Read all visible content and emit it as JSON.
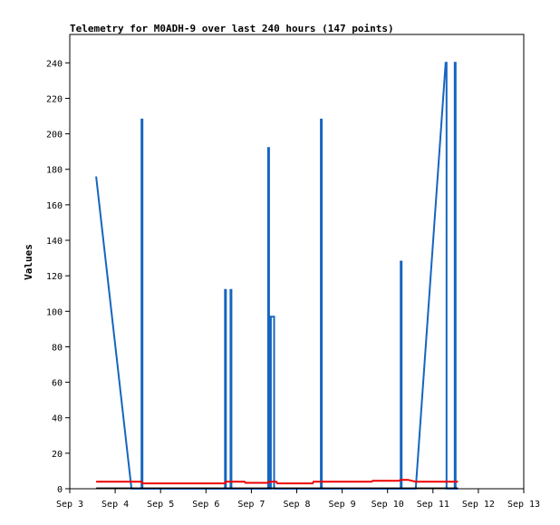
{
  "chart_data": {
    "type": "line",
    "title": "Telemetry for M0ADH-9 over last 240 hours (147 points)",
    "xlabel": "",
    "ylabel": "Values",
    "x_ticks": [
      "Sep 3",
      "Sep 4",
      "Sep 5",
      "Sep 6",
      "Sep 7",
      "Sep 8",
      "Sep 9",
      "Sep 10",
      "Sep 11",
      "Sep 12",
      "Sep 13"
    ],
    "y_ticks": [
      0,
      20,
      40,
      60,
      80,
      100,
      120,
      140,
      160,
      180,
      200,
      220,
      240
    ],
    "xlim": [
      3,
      13
    ],
    "ylim": [
      0,
      256
    ],
    "grid": false,
    "legend": "none",
    "colors": {
      "series1": "#1565c0",
      "series2": "#ee0000",
      "series3": "#000000",
      "axis": "#000000"
    },
    "series": [
      {
        "color": "#1565c0",
        "points": [
          [
            3.58,
            176
          ],
          [
            4.36,
            0
          ],
          [
            4.58,
            0
          ],
          [
            4.58,
            208
          ],
          [
            4.6,
            208
          ],
          [
            4.6,
            0
          ],
          [
            6.42,
            0
          ],
          [
            6.42,
            112
          ],
          [
            6.44,
            112
          ],
          [
            6.44,
            0
          ],
          [
            6.54,
            0
          ],
          [
            6.54,
            112
          ],
          [
            6.56,
            112
          ],
          [
            6.56,
            0
          ],
          [
            7.37,
            0
          ],
          [
            7.37,
            192
          ],
          [
            7.39,
            192
          ],
          [
            7.39,
            0
          ],
          [
            7.43,
            0
          ],
          [
            7.43,
            97
          ],
          [
            7.5,
            97
          ],
          [
            7.5,
            0
          ],
          [
            8.53,
            0
          ],
          [
            8.53,
            208
          ],
          [
            8.55,
            208
          ],
          [
            8.55,
            0
          ],
          [
            10.29,
            0
          ],
          [
            10.29,
            128
          ],
          [
            10.31,
            128
          ],
          [
            10.31,
            0
          ],
          [
            10.62,
            0
          ],
          [
            11.28,
            240
          ],
          [
            11.3,
            240
          ],
          [
            11.3,
            0
          ],
          [
            11.48,
            0
          ],
          [
            11.48,
            240
          ],
          [
            11.5,
            240
          ],
          [
            11.5,
            0
          ],
          [
            11.55,
            0
          ]
        ]
      },
      {
        "color": "#ee0000",
        "points": [
          [
            3.58,
            4
          ],
          [
            4.58,
            4
          ],
          [
            4.6,
            3
          ],
          [
            6.42,
            3
          ],
          [
            6.44,
            4
          ],
          [
            6.85,
            4
          ],
          [
            6.87,
            3.3
          ],
          [
            7.37,
            3.3
          ],
          [
            7.39,
            4
          ],
          [
            7.55,
            4
          ],
          [
            7.57,
            3
          ],
          [
            8.35,
            3
          ],
          [
            8.37,
            4
          ],
          [
            9.65,
            4
          ],
          [
            9.67,
            4.5
          ],
          [
            10.25,
            4.5
          ],
          [
            10.29,
            5
          ],
          [
            10.45,
            5
          ],
          [
            10.62,
            4
          ],
          [
            11.55,
            4
          ]
        ]
      },
      {
        "color": "#000000",
        "points": [
          [
            3.58,
            0.3
          ],
          [
            11.55,
            0.3
          ]
        ]
      }
    ]
  }
}
